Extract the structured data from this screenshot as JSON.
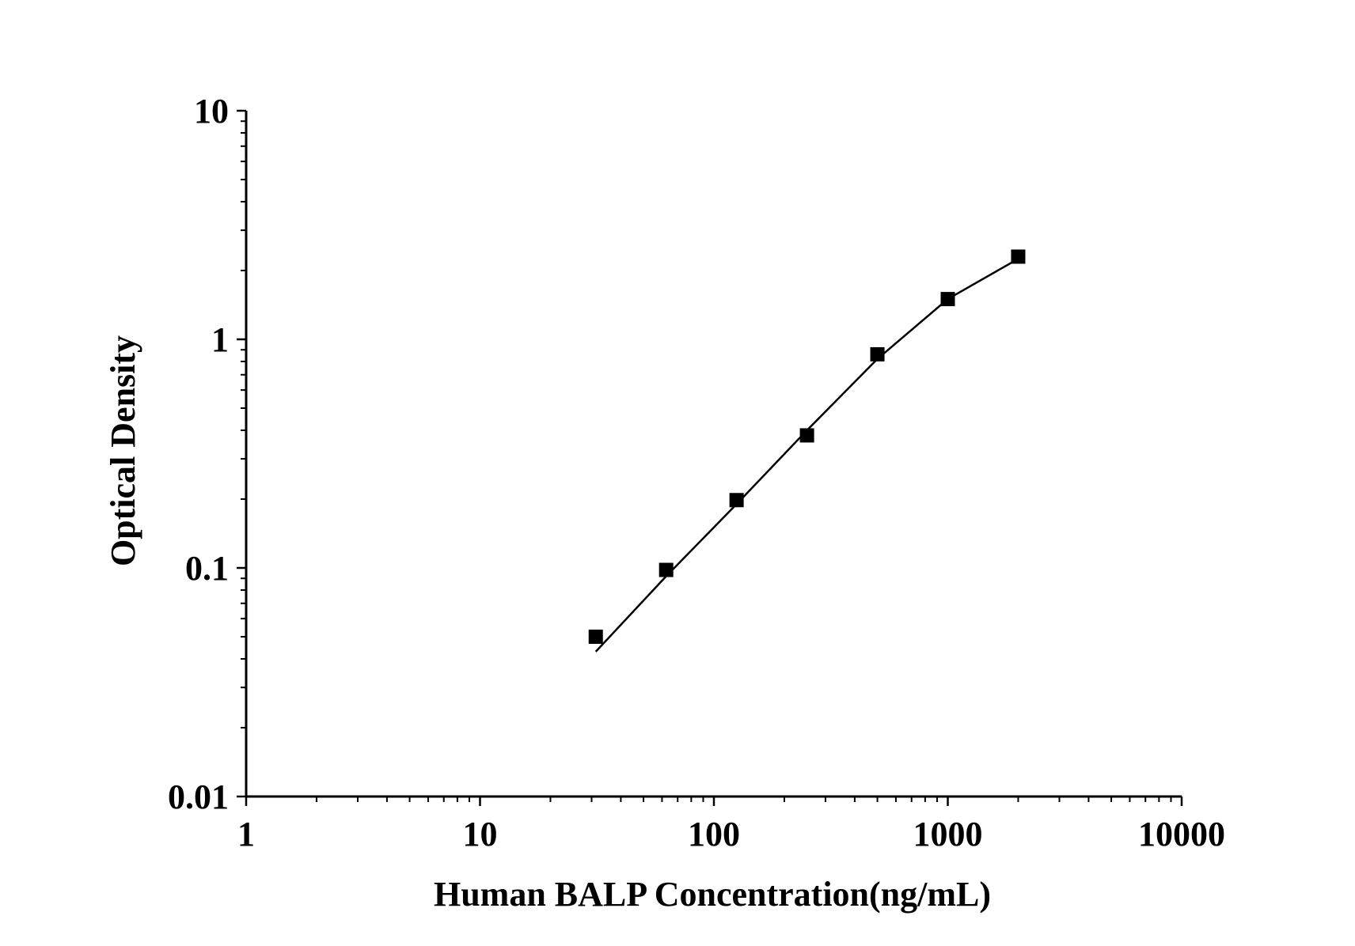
{
  "chart_data": {
    "type": "scatter",
    "xlabel": "Human BALP Concentration(ng/mL)",
    "ylabel": "Optical Density",
    "x_scale": "log",
    "y_scale": "log",
    "xlim": [
      1,
      10000
    ],
    "ylim": [
      0.01,
      10
    ],
    "x_ticks": [
      1,
      10,
      100,
      1000,
      10000
    ],
    "x_tick_labels": [
      "1",
      "10",
      "100",
      "1000",
      "10000"
    ],
    "y_ticks": [
      0.01,
      0.1,
      1,
      10
    ],
    "y_tick_labels": [
      "0.01",
      "0.1",
      "1",
      "10"
    ],
    "grid": false,
    "series": [
      {
        "marker": "square",
        "color": "#000000",
        "x": [
          31.25,
          62.5,
          125,
          250,
          500,
          1000,
          2000
        ],
        "y": [
          0.05,
          0.098,
          0.198,
          0.38,
          0.86,
          1.5,
          2.3
        ]
      }
    ],
    "fit_curve": {
      "color": "#000000",
      "x": [
        31.25,
        62.5,
        125,
        250,
        500,
        1000,
        2000
      ],
      "y": [
        0.043,
        0.092,
        0.19,
        0.4,
        0.82,
        1.5,
        2.25
      ]
    }
  }
}
